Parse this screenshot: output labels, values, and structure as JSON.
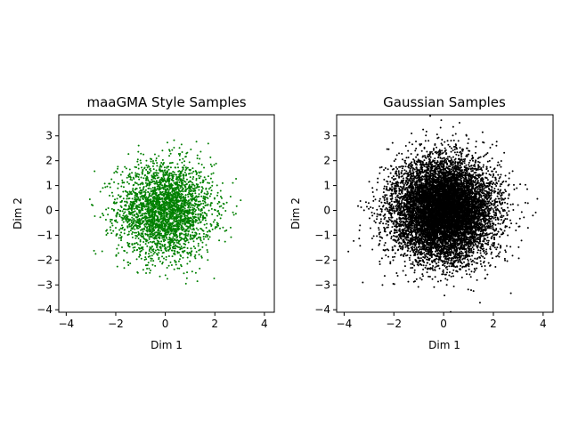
{
  "chart_data": [
    {
      "type": "scatter",
      "title": "maaGMA Style Samples",
      "xlabel": "Dim 1",
      "ylabel": "Dim 2",
      "xlim": [
        -4.3,
        4.4
      ],
      "ylim": [
        -4.1,
        3.85
      ],
      "xticks": [
        -4,
        -2,
        0,
        2,
        4
      ],
      "yticks": [
        -4,
        -3,
        -2,
        -1,
        0,
        1,
        2,
        3
      ],
      "grid": false,
      "series": [
        {
          "color": "#008000",
          "distribution": "approximately standard normal, radially truncated near 3",
          "std": 0.95,
          "count": 3000,
          "point_radius": 1.0
        }
      ]
    },
    {
      "type": "scatter",
      "title": "Gaussian Samples",
      "xlabel": "Dim 1",
      "ylabel": "Dim 2",
      "xlim": [
        -4.3,
        4.4
      ],
      "ylim": [
        -4.1,
        3.85
      ],
      "xticks": [
        -4,
        -2,
        0,
        2,
        4
      ],
      "yticks": [
        -4,
        -3,
        -2,
        -1,
        0,
        1,
        2,
        3
      ],
      "grid": false,
      "series": [
        {
          "color": "#000000",
          "distribution": "standard normal",
          "std": 1.0,
          "count": 10000,
          "point_radius": 1.0
        }
      ]
    }
  ]
}
